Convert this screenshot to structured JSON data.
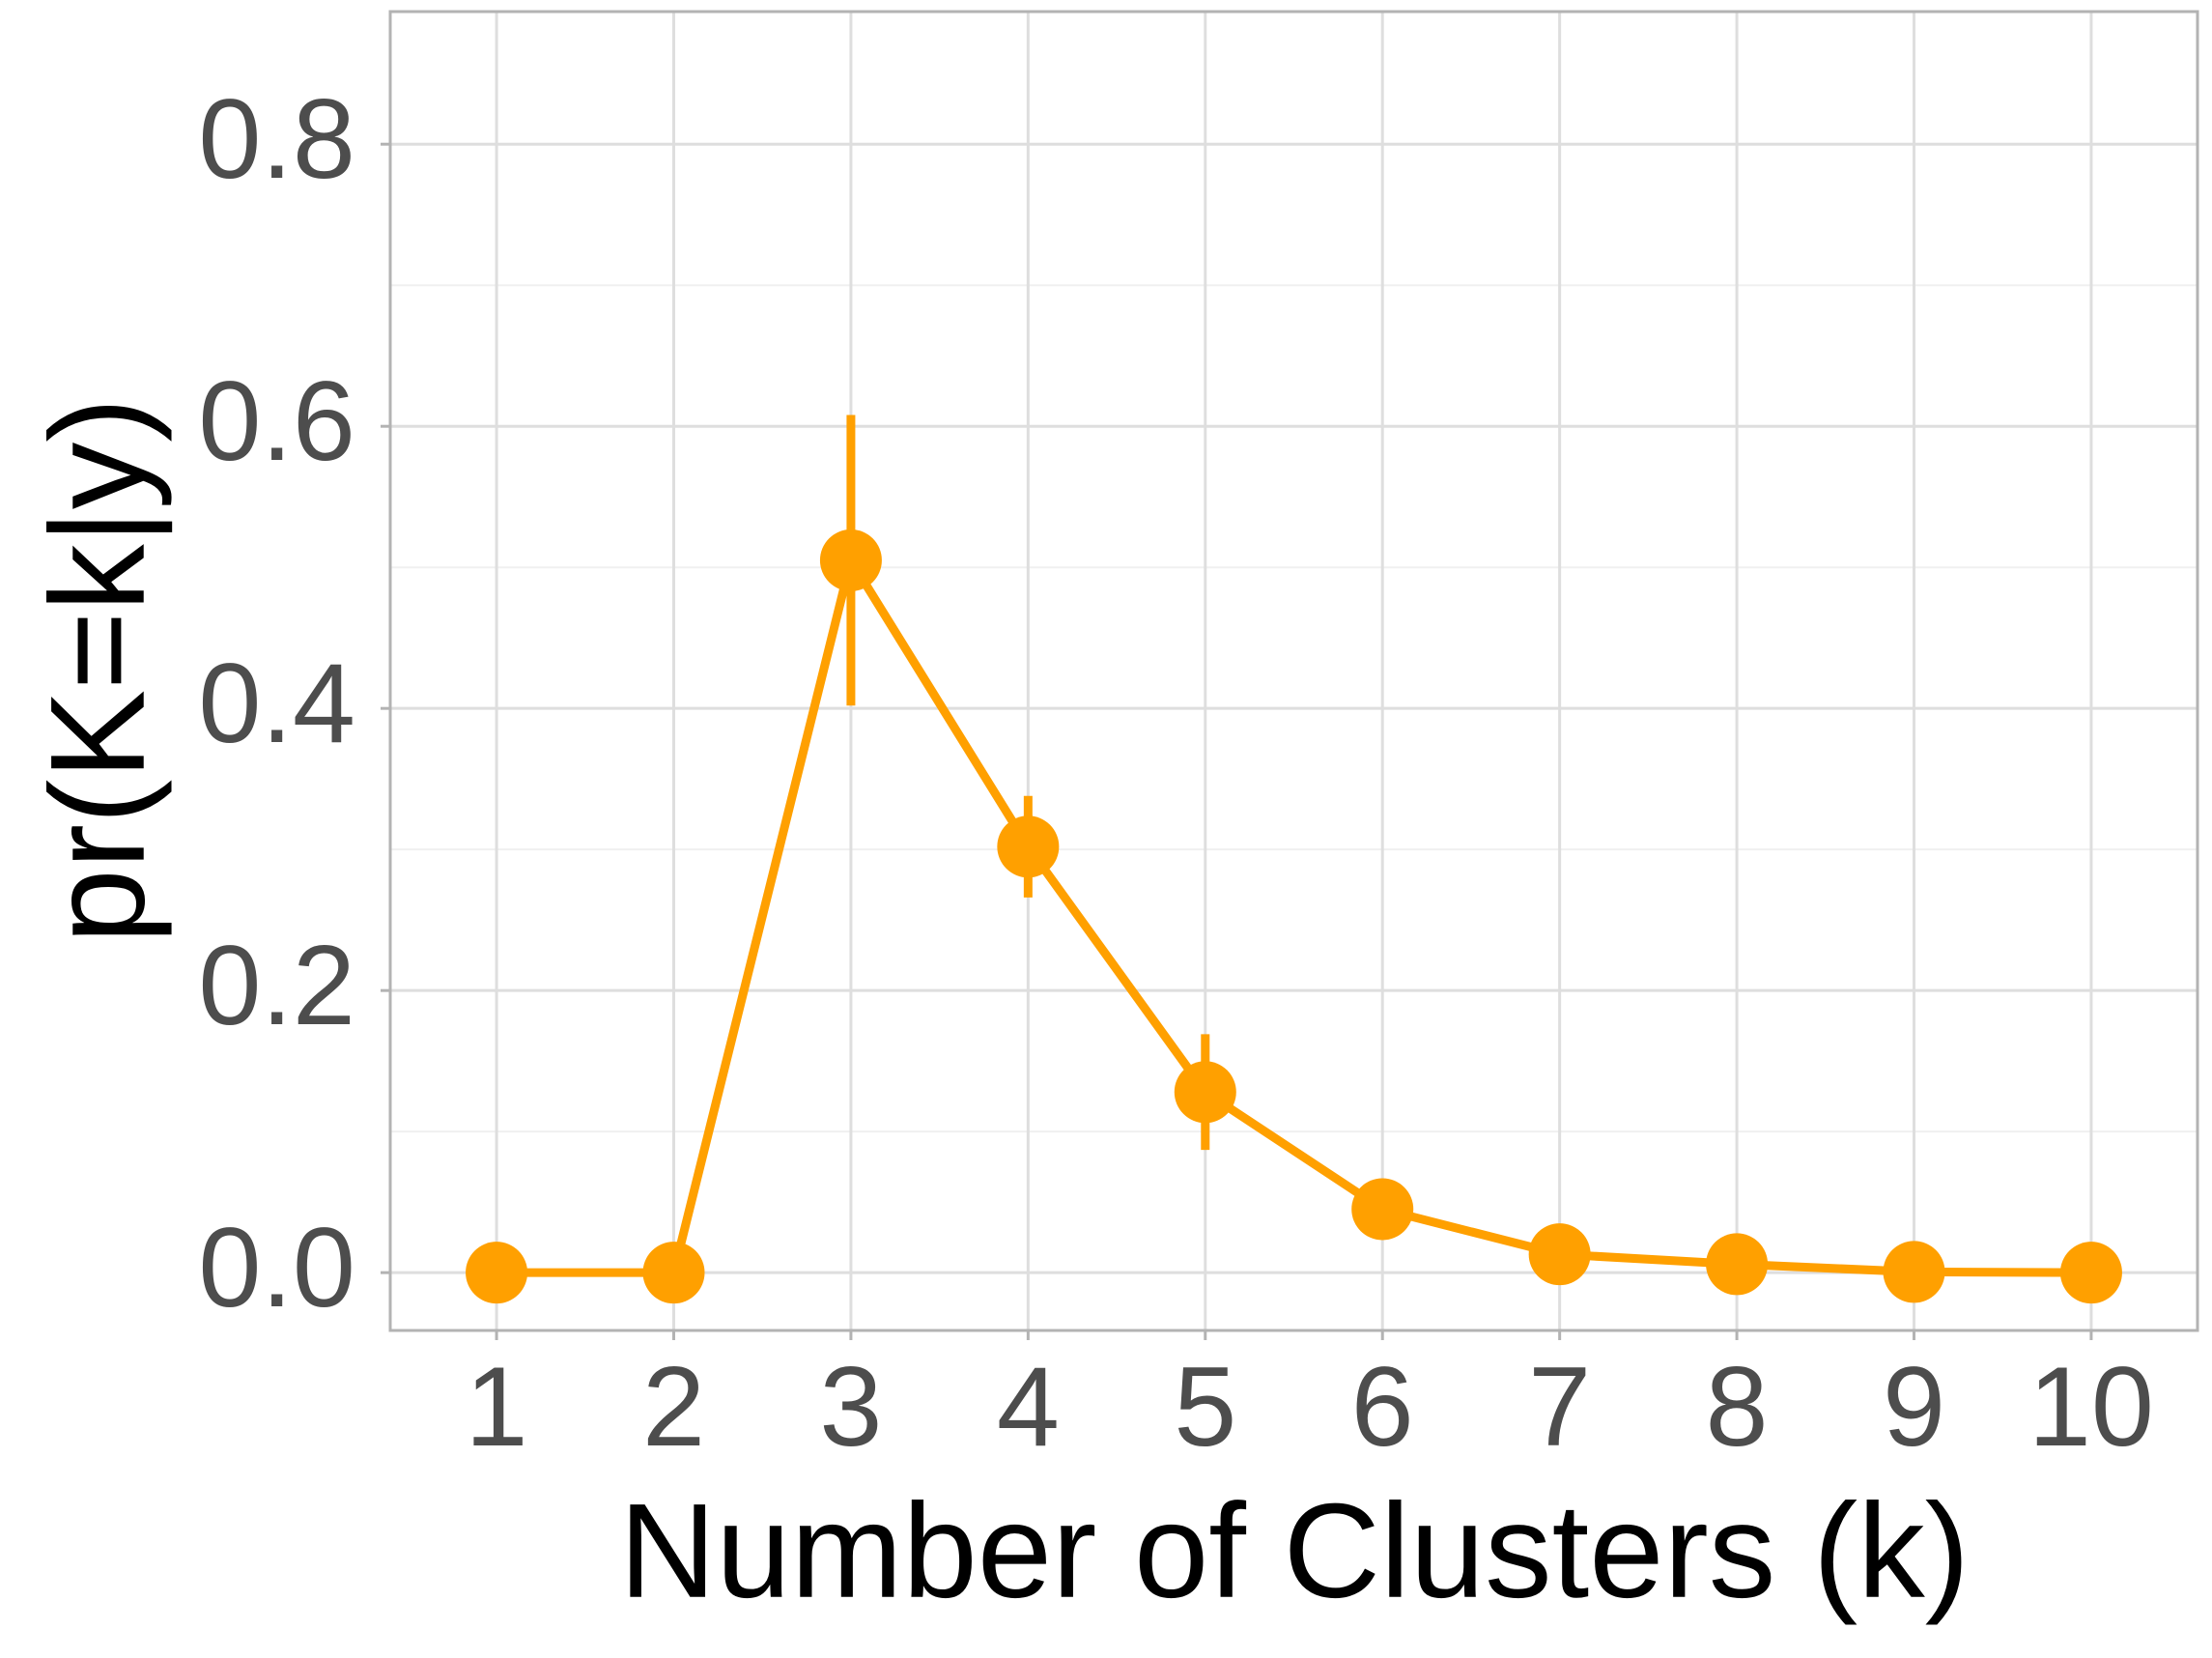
{
  "chart_data": {
    "type": "line",
    "x_label": "Number of Clusters (k)",
    "y_label": "pr(K=k|y)",
    "x": [
      1,
      2,
      3,
      4,
      5,
      6,
      7,
      8,
      9,
      10
    ],
    "series": [
      {
        "color": "#ffa000",
        "values": [
          0,
          0,
          0.505,
          0.302,
          0.128,
          0.045,
          0.013,
          0.006,
          0.0005,
          0
        ],
        "errors": [
          0,
          0,
          0.103,
          0.036,
          0.041,
          0,
          0,
          0,
          0,
          0
        ]
      }
    ],
    "xlim": [
      0.4,
      10.6
    ],
    "xticks": [
      1,
      2,
      3,
      4,
      5,
      6,
      7,
      8,
      9,
      10
    ],
    "ylim": [
      -0.041,
      0.894
    ],
    "yticks": [
      {
        "value": 0,
        "label": "0.0"
      },
      0.2,
      0.4,
      0.6,
      0.8
    ],
    "minor_yticks": [
      0.1,
      0.3,
      0.5,
      0.7
    ],
    "grid": true
  }
}
